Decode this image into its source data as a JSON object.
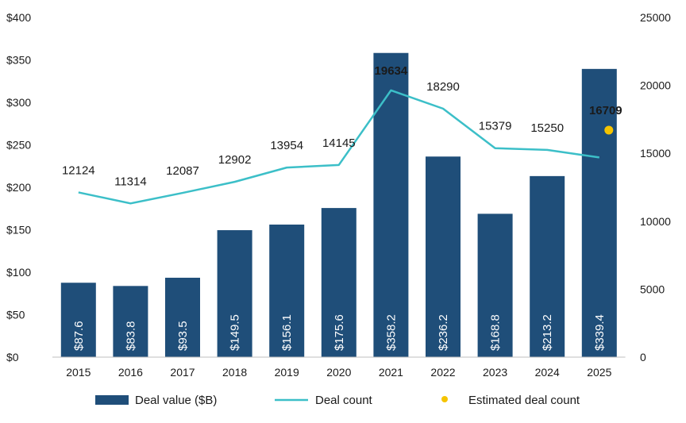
{
  "chart_data": {
    "type": "bar",
    "categories": [
      "2015",
      "2016",
      "2017",
      "2018",
      "2019",
      "2020",
      "2021",
      "2022",
      "2023",
      "2024",
      "2025"
    ],
    "series": [
      {
        "name": "Deal value ($B)",
        "type": "bar",
        "axis": "left",
        "values": [
          87.6,
          83.8,
          93.5,
          149.5,
          156.1,
          175.6,
          358.2,
          236.2,
          168.8,
          213.2,
          339.4
        ],
        "labels": [
          "$87.6",
          "$83.8",
          "$93.5",
          "$149.5",
          "$156.1",
          "$175.6",
          "$358.2",
          "$236.2",
          "$168.8",
          "$213.2",
          "$339.4"
        ],
        "color": "#1f4e79"
      },
      {
        "name": "Deal count",
        "type": "line",
        "axis": "right",
        "values": [
          12124,
          11314,
          12087,
          12902,
          13954,
          14145,
          19634,
          18290,
          15379,
          15250,
          14700
        ],
        "labels": [
          "12124",
          "11314",
          "12087",
          "12902",
          "13954",
          "14145",
          "19634",
          "18290",
          "15379",
          "15250",
          ""
        ],
        "color": "#3cbfc8"
      },
      {
        "name": "Estimated deal count",
        "type": "point",
        "axis": "right",
        "category": "2025",
        "value": 16709,
        "label": "16709",
        "color": "#f5c400"
      }
    ],
    "y_left": {
      "ylim": [
        0,
        400
      ],
      "ticks": [
        "$0",
        "$50",
        "$100",
        "$150",
        "$200",
        "$250",
        "$300",
        "$350",
        "$400"
      ]
    },
    "y_right": {
      "ylim": [
        0,
        25000
      ],
      "ticks": [
        "0",
        "5000",
        "10000",
        "15000",
        "20000",
        "25000"
      ]
    },
    "legend": {
      "placement": "bottom",
      "items": [
        {
          "label": "Deal value ($B)",
          "symbol": "bar"
        },
        {
          "label": "Deal count",
          "symbol": "line"
        },
        {
          "label": "Estimated deal count",
          "symbol": "dot"
        }
      ]
    },
    "grid": false
  }
}
